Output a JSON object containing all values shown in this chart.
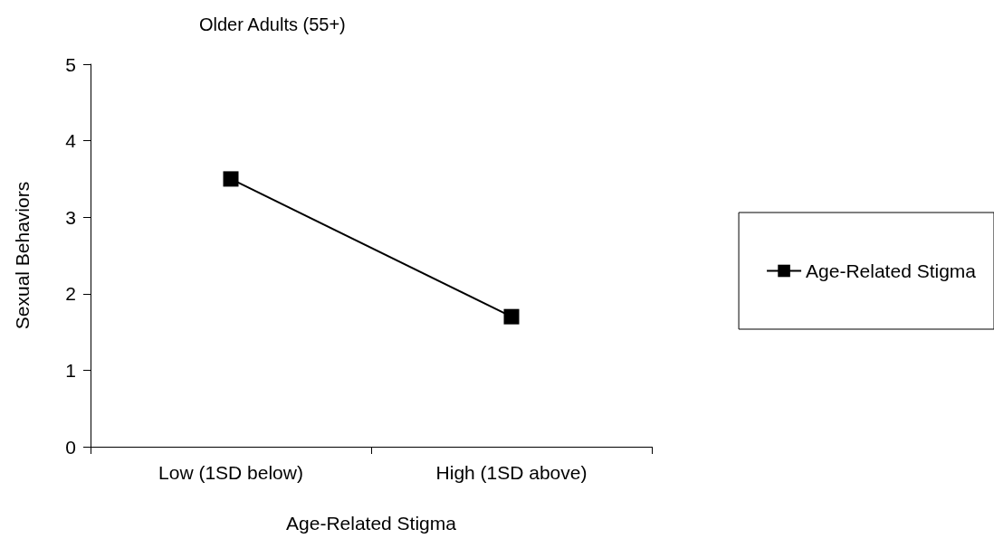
{
  "chart_data": {
    "type": "line",
    "title": "Older Adults (55+)",
    "xlabel": "Age-Related Stigma",
    "ylabel": "Sexual Behaviors",
    "categories": [
      "Low (1SD below)",
      "High (1SD above)"
    ],
    "series": [
      {
        "name": "Age-Related Stigma",
        "color": "#000000",
        "values": [
          3.5,
          1.7
        ]
      }
    ],
    "ylim": [
      0,
      5
    ],
    "yticks": [
      0,
      1,
      2,
      3,
      4,
      5
    ],
    "grid": false,
    "legend": "right",
    "marker": "square",
    "line_style": "solid"
  }
}
